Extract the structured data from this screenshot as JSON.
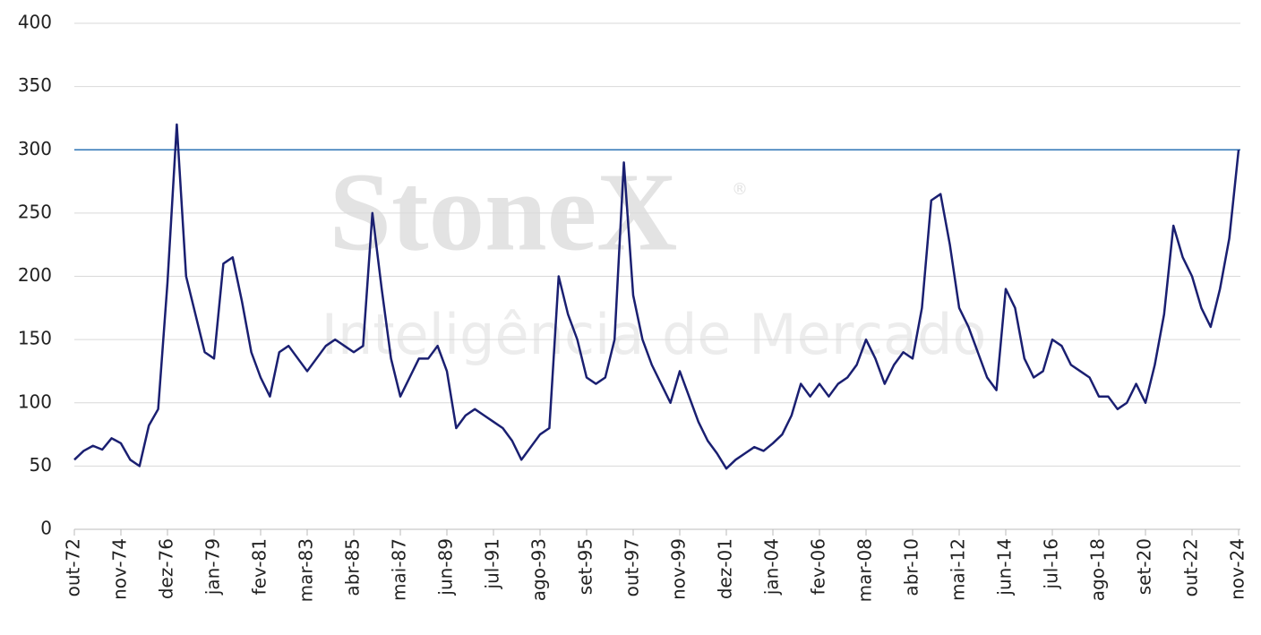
{
  "chart_data": {
    "type": "line",
    "x": [
      "out-72",
      "mar-73",
      "ago-73",
      "jan-74",
      "jun-74",
      "nov-74",
      "abr-75",
      "set-75",
      "fev-76",
      "jul-76",
      "dez-76",
      "mai-77",
      "out-77",
      "mar-78",
      "ago-78",
      "jan-79",
      "jun-79",
      "nov-79",
      "abr-80",
      "set-80",
      "fev-81",
      "jul-81",
      "dez-81",
      "mai-82",
      "out-82",
      "mar-83",
      "ago-83",
      "jan-84",
      "jun-84",
      "nov-84",
      "abr-85",
      "set-85",
      "fev-86",
      "jul-86",
      "dez-86",
      "mai-87",
      "out-87",
      "mar-88",
      "ago-88",
      "jan-89",
      "jun-89",
      "nov-89",
      "abr-90",
      "set-90",
      "fev-91",
      "jul-91",
      "dez-91",
      "mai-92",
      "out-92",
      "mar-93",
      "ago-93",
      "jan-94",
      "jun-94",
      "nov-94",
      "abr-95",
      "set-95",
      "fev-96",
      "jul-96",
      "dez-96",
      "mai-97",
      "out-97",
      "mar-98",
      "ago-98",
      "jan-99",
      "jun-99",
      "nov-99",
      "abr-00",
      "set-00",
      "fev-01",
      "jul-01",
      "dez-01",
      "mai-02",
      "out-02",
      "mar-03",
      "ago-03",
      "jan-04",
      "jun-04",
      "nov-04",
      "abr-05",
      "set-05",
      "fev-06",
      "jul-06",
      "dez-06",
      "mai-07",
      "out-07",
      "mar-08",
      "ago-08",
      "jan-09",
      "jun-09",
      "nov-09",
      "abr-10",
      "set-10",
      "fev-11",
      "jul-11",
      "dez-11",
      "mai-12",
      "out-12",
      "mar-13",
      "ago-13",
      "jan-14",
      "jun-14",
      "nov-14",
      "abr-15",
      "set-15",
      "fev-16",
      "jul-16",
      "dez-16",
      "mai-17",
      "out-17",
      "mar-18",
      "ago-18",
      "jan-19",
      "jun-19",
      "nov-19",
      "abr-20",
      "set-20",
      "fev-21",
      "jul-21",
      "dez-21",
      "mai-22",
      "out-22",
      "mar-23",
      "ago-23",
      "jan-24",
      "jun-24",
      "nov-24"
    ],
    "series": [
      {
        "color": "#1a1f71",
        "values": [
          55,
          62,
          66,
          63,
          72,
          68,
          55,
          50,
          82,
          95,
          195,
          320,
          200,
          170,
          140,
          135,
          210,
          215,
          180,
          140,
          120,
          105,
          140,
          145,
          135,
          125,
          135,
          145,
          150,
          145,
          140,
          145,
          250,
          190,
          135,
          105,
          120,
          135,
          135,
          145,
          125,
          80,
          90,
          95,
          90,
          85,
          80,
          70,
          55,
          65,
          75,
          80,
          200,
          170,
          150,
          120,
          115,
          120,
          150,
          290,
          185,
          150,
          130,
          115,
          100,
          125,
          105,
          85,
          70,
          60,
          48,
          55,
          60,
          65,
          62,
          68,
          75,
          90,
          115,
          105,
          115,
          105,
          115,
          120,
          130,
          150,
          135,
          115,
          130,
          140,
          135,
          175,
          260,
          265,
          225,
          175,
          160,
          140,
          120,
          110,
          190,
          175,
          135,
          120,
          125,
          150,
          145,
          130,
          125,
          120,
          105,
          105,
          95,
          100,
          115,
          100,
          130,
          170,
          240,
          215,
          200,
          175,
          160,
          190,
          230,
          300
        ]
      }
    ],
    "xticks": [
      "out-72",
      "nov-74",
      "dez-76",
      "jan-79",
      "fev-81",
      "mar-83",
      "abr-85",
      "mai-87",
      "jun-89",
      "jul-91",
      "ago-93",
      "set-95",
      "out-97",
      "nov-99",
      "dez-01",
      "jan-04",
      "fev-06",
      "mar-08",
      "abr-10",
      "mai-12",
      "jun-14",
      "jul-16",
      "ago-18",
      "set-20",
      "out-22",
      "nov-24"
    ],
    "ylim": [
      0,
      400
    ],
    "yticks": [
      0,
      50,
      100,
      150,
      200,
      250,
      300,
      350,
      400
    ],
    "grid": true,
    "reference_line": {
      "value": 300,
      "color": "#2e75b6"
    },
    "watermark": {
      "brand": "StoneX",
      "mark": "®",
      "subtitle": "Inteligência de Mercado"
    }
  }
}
